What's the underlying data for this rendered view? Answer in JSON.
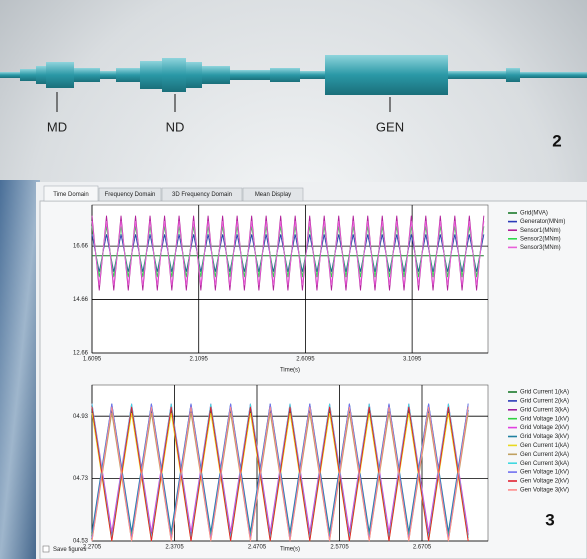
{
  "banner": {
    "component_labels": [
      "MD",
      "ND",
      "GEN"
    ],
    "figure_number": "2"
  },
  "window": {
    "tabs": [
      "Time Domain",
      "Frequency Domain",
      "3D Frequency Domain",
      "Mean Display"
    ],
    "checkbox_label": "Save figures",
    "figure_number": "3"
  },
  "chart_data": [
    {
      "type": "line",
      "xlabel": "Time(s)",
      "grid": true,
      "grid_color": "#000000",
      "xlim": [
        1.6095,
        3.465
      ],
      "xticks": [
        1.6095,
        2.1095,
        2.6095,
        3.1095
      ],
      "ylim": [
        12.66,
        18.2
      ],
      "yticks": [
        12.66,
        14.66,
        16.66
      ],
      "x": [
        1.6095,
        1.6435,
        1.6775,
        1.7115,
        1.7455,
        1.7795,
        1.8135,
        1.8475,
        1.8815,
        1.9155,
        1.9495,
        1.9835,
        2.0175,
        2.0515,
        2.0855,
        2.1195,
        2.1535,
        2.1875,
        2.2215,
        2.2555,
        2.2895,
        2.3235,
        2.3575,
        2.3915,
        2.4255,
        2.4595,
        2.4935,
        2.5275,
        2.5615,
        2.5955,
        2.6295,
        2.6635,
        2.6975,
        2.7315,
        2.7655,
        2.7995,
        2.8335,
        2.8675,
        2.9015,
        2.9355,
        2.9695,
        3.0035,
        3.0375,
        3.0715,
        3.1055,
        3.1395,
        3.1735,
        3.2075,
        3.2415,
        3.2755,
        3.3095,
        3.3435,
        3.3775,
        3.4115,
        3.4455
      ],
      "series": [
        {
          "name": "Grid(MVA)",
          "color": "#1a7a2a",
          "values": [
            16.3,
            16.3,
            16.3,
            16.3,
            16.3,
            16.3,
            16.3,
            16.3,
            16.3,
            16.3,
            16.3,
            16.3,
            16.3,
            16.3,
            16.3,
            16.3,
            16.3,
            16.3,
            16.3,
            16.3,
            16.3,
            16.3,
            16.3,
            16.3,
            16.3,
            16.3,
            16.3,
            16.3,
            16.3,
            16.3,
            16.3,
            16.3,
            16.3,
            16.3,
            16.3,
            16.3,
            16.3,
            16.3,
            16.3,
            16.3,
            16.3,
            16.3,
            16.3,
            16.3,
            16.3,
            16.3,
            16.3,
            16.3,
            16.3,
            16.3,
            16.3,
            16.3,
            16.3,
            16.3,
            16.3
          ]
        },
        {
          "name": "Generator(MNm)",
          "color": "#2a3ab8",
          "values": [
            17.1,
            15.7,
            17.1,
            15.7,
            17.1,
            15.7,
            17.1,
            15.7,
            17.1,
            15.7,
            17.1,
            15.7,
            17.1,
            15.7,
            17.1,
            15.7,
            17.1,
            15.7,
            17.1,
            15.7,
            17.1,
            15.7,
            17.1,
            15.7,
            17.1,
            15.7,
            17.1,
            15.7,
            17.1,
            15.7,
            17.1,
            15.7,
            17.1,
            15.7,
            17.1,
            15.7,
            17.1,
            15.7,
            17.1,
            15.7,
            17.1,
            15.7,
            17.1,
            15.7,
            17.1,
            15.7,
            17.1,
            15.7,
            17.1,
            15.7,
            17.1,
            15.7,
            17.1,
            15.7,
            17.1
          ]
        },
        {
          "name": "Sensor1(MNm)",
          "color": "#b0209a",
          "values": [
            17.8,
            15.0,
            17.8,
            15.0,
            17.8,
            15.0,
            17.8,
            15.0,
            17.8,
            15.0,
            17.8,
            15.0,
            17.8,
            15.0,
            17.8,
            15.0,
            17.8,
            15.0,
            17.8,
            15.0,
            17.8,
            15.0,
            17.8,
            15.0,
            17.8,
            15.0,
            17.8,
            15.0,
            17.8,
            15.0,
            17.8,
            15.0,
            17.8,
            15.0,
            17.8,
            15.0,
            17.8,
            15.0,
            17.8,
            15.0,
            17.8,
            15.0,
            17.8,
            15.0,
            17.8,
            15.0,
            17.8,
            15.0,
            17.8,
            15.0,
            17.8,
            15.0,
            17.8,
            15.0,
            17.8
          ]
        },
        {
          "name": "Sensor2(MNm)",
          "color": "#2ed84a",
          "values": [
            17.4,
            15.5,
            17.4,
            15.5,
            17.4,
            15.5,
            17.4,
            15.5,
            17.4,
            15.5,
            17.4,
            15.5,
            17.4,
            15.5,
            17.4,
            15.5,
            17.4,
            15.5,
            17.4,
            15.5,
            17.4,
            15.5,
            17.4,
            15.5,
            17.4,
            15.5,
            17.4,
            15.5,
            17.4,
            15.5,
            17.4,
            15.5,
            17.4,
            15.5,
            17.4,
            15.5,
            17.4,
            15.5,
            17.4,
            15.5,
            17.4,
            15.5,
            17.4,
            15.5,
            17.4,
            15.5,
            17.4,
            15.5,
            17.4,
            15.5,
            17.4,
            15.5,
            17.4,
            15.5,
            17.4
          ]
        },
        {
          "name": "Sensor3(MNm)",
          "color": "#e860d8",
          "values": [
            17.6,
            15.2,
            17.6,
            15.2,
            17.6,
            15.2,
            17.6,
            15.2,
            17.6,
            15.2,
            17.6,
            15.2,
            17.6,
            15.2,
            17.6,
            15.2,
            17.6,
            15.2,
            17.6,
            15.2,
            17.6,
            15.2,
            17.6,
            15.2,
            17.6,
            15.2,
            17.6,
            15.2,
            17.6,
            15.2,
            17.6,
            15.2,
            17.6,
            15.2,
            17.6,
            15.2,
            17.6,
            15.2,
            17.6,
            15.2,
            17.6,
            15.2,
            17.6,
            15.2,
            17.6,
            15.2,
            17.6,
            15.2,
            17.6,
            15.2,
            17.6,
            15.2,
            17.6,
            15.2,
            17.6
          ]
        }
      ]
    },
    {
      "type": "line",
      "xlabel": "Time(s)",
      "grid": true,
      "grid_color": "#000000",
      "xlim": [
        2.2705,
        2.7505
      ],
      "xticks": [
        2.2705,
        2.3705,
        2.4705,
        2.5705,
        2.6705
      ],
      "ylim": [
        4.53,
        5.03
      ],
      "yticks": [
        {
          "value": 4.53,
          "label": "04.53"
        },
        {
          "value": 4.73,
          "label": "04.73"
        },
        {
          "value": 4.93,
          "label": "04.93"
        }
      ],
      "x": [
        2.2705,
        2.2945,
        2.3185,
        2.3425,
        2.3665,
        2.3905,
        2.4145,
        2.4385,
        2.4625,
        2.4865,
        2.5105,
        2.5345,
        2.5585,
        2.5825,
        2.6065,
        2.6305,
        2.6545,
        2.6785,
        2.7025,
        2.7265
      ],
      "series": [
        {
          "name": "Grid Current 1(kA)",
          "color": "#1a7a2a",
          "values": [
            4.95,
            4.54,
            4.95,
            4.54,
            4.95,
            4.54,
            4.95,
            4.54,
            4.95,
            4.54,
            4.95,
            4.54,
            4.95,
            4.54,
            4.95,
            4.54,
            4.95,
            4.54,
            4.95,
            4.54
          ]
        },
        {
          "name": "Grid Current 2(kA)",
          "color": "#2a3ab8",
          "values": [
            4.54,
            4.95,
            4.54,
            4.95,
            4.54,
            4.95,
            4.54,
            4.95,
            4.54,
            4.95,
            4.54,
            4.95,
            4.54,
            4.95,
            4.54,
            4.95,
            4.54,
            4.95,
            4.54,
            4.95
          ]
        },
        {
          "name": "Grid Current 3(kA)",
          "color": "#a020a0",
          "values": [
            4.96,
            4.55,
            4.96,
            4.55,
            4.96,
            4.55,
            4.96,
            4.55,
            4.96,
            4.55,
            4.96,
            4.55,
            4.96,
            4.55,
            4.96,
            4.55,
            4.96,
            4.55,
            4.96,
            4.55
          ]
        },
        {
          "name": "Grid Voltage 1(kV)",
          "color": "#30d040",
          "values": [
            4.55,
            4.96,
            4.55,
            4.96,
            4.55,
            4.96,
            4.55,
            4.96,
            4.55,
            4.96,
            4.55,
            4.96,
            4.55,
            4.96,
            4.55,
            4.96,
            4.55,
            4.96,
            4.55,
            4.96
          ]
        },
        {
          "name": "Grid Voltage 2(kV)",
          "color": "#e040e0",
          "values": [
            4.97,
            4.56,
            4.97,
            4.56,
            4.97,
            4.56,
            4.97,
            4.56,
            4.97,
            4.56,
            4.97,
            4.56,
            4.97,
            4.56,
            4.97,
            4.56,
            4.97,
            4.56,
            4.97,
            4.56
          ]
        },
        {
          "name": "Grid Voltage 3(kV)",
          "color": "#2080a0",
          "values": [
            4.56,
            4.97,
            4.56,
            4.97,
            4.56,
            4.97,
            4.56,
            4.97,
            4.56,
            4.97,
            4.56,
            4.97,
            4.56,
            4.97,
            4.56,
            4.97,
            4.56,
            4.97,
            4.56,
            4.97
          ]
        },
        {
          "name": "Gen Current 1(kA)",
          "color": "#e8d820",
          "values": [
            4.94,
            4.53,
            4.94,
            4.53,
            4.94,
            4.53,
            4.94,
            4.53,
            4.94,
            4.53,
            4.94,
            4.53,
            4.94,
            4.53,
            4.94,
            4.53,
            4.94,
            4.53,
            4.94,
            4.53
          ]
        },
        {
          "name": "Gen Current 2(kA)",
          "color": "#c0a060",
          "values": [
            4.53,
            4.94,
            4.53,
            4.94,
            4.53,
            4.94,
            4.53,
            4.94,
            4.53,
            4.94,
            4.53,
            4.94,
            4.53,
            4.94,
            4.53,
            4.94,
            4.53,
            4.94,
            4.53,
            4.94
          ]
        },
        {
          "name": "Gen Current 3(kA)",
          "color": "#40d8e0",
          "values": [
            4.97,
            4.54,
            4.97,
            4.54,
            4.97,
            4.54,
            4.97,
            4.54,
            4.97,
            4.54,
            4.97,
            4.54,
            4.97,
            4.54,
            4.97,
            4.54,
            4.97,
            4.54,
            4.97,
            4.54
          ]
        },
        {
          "name": "Gen Voltage 1(kV)",
          "color": "#7070f0",
          "values": [
            4.54,
            4.97,
            4.54,
            4.97,
            4.54,
            4.97,
            4.54,
            4.97,
            4.54,
            4.97,
            4.54,
            4.97,
            4.54,
            4.97,
            4.54,
            4.97,
            4.54,
            4.97,
            4.54,
            4.97
          ]
        },
        {
          "name": "Gen Voltage 2(kV)",
          "color": "#e02030",
          "values": [
            4.96,
            4.53,
            4.96,
            4.53,
            4.96,
            4.53,
            4.96,
            4.53,
            4.96,
            4.53,
            4.96,
            4.53,
            4.96,
            4.53,
            4.96,
            4.53,
            4.96,
            4.53,
            4.96,
            4.53
          ]
        },
        {
          "name": "Gen Voltage 3(kV)",
          "color": "#ff8c8c",
          "values": [
            4.53,
            4.96,
            4.53,
            4.96,
            4.53,
            4.96,
            4.53,
            4.96,
            4.53,
            4.96,
            4.53,
            4.96,
            4.53,
            4.96,
            4.53,
            4.96,
            4.53,
            4.96,
            4.53,
            4.96
          ]
        }
      ]
    }
  ]
}
